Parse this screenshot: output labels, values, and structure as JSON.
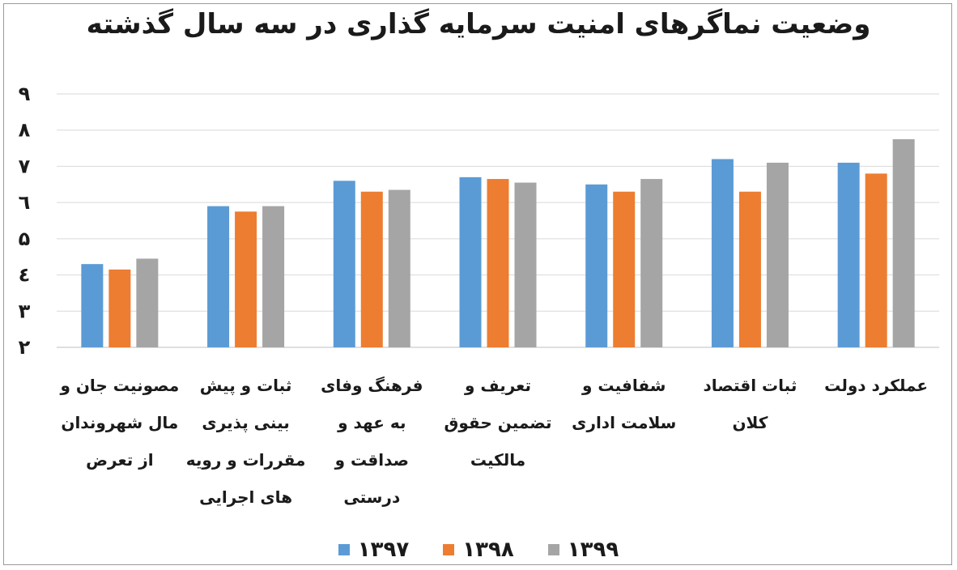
{
  "chart_data": {
    "type": "bar",
    "title": "وضعیت نماگرهای امنیت سرمایه گذاری در سه سال گذشته",
    "ylim": [
      2,
      9
    ],
    "yticks": [
      "۲",
      "۳",
      "٤",
      "۵",
      "٦",
      "۷",
      "۸",
      "۹"
    ],
    "grid": true,
    "legend_position": "bottom",
    "categories": [
      "عملکرد دولت",
      "ثبات اقتصاد کلان",
      "شفافیت و سلامت اداری",
      "تعریف و تضمین حقوق مالکیت",
      "فرهنگ وفای به عهد و صداقت و درستی",
      "ثبات و پیش بینی پذیری مقررات و رویه های اجرایی",
      "مصونیت جان و مال شهروندان از تعرض"
    ],
    "category_label_lines": [
      [
        "عملکرد دولت"
      ],
      [
        "ثبات اقتصاد",
        "کلان"
      ],
      [
        "شفافیت و",
        "سلامت اداری"
      ],
      [
        "تعریف و",
        "تضمین حقوق",
        "مالکیت"
      ],
      [
        "فرهنگ وفای",
        "به عهد و",
        "صداقت و",
        "درستی"
      ],
      [
        "ثبات و پیش",
        "بینی پذیری",
        "مقررات و رویه",
        "های اجرایی"
      ],
      [
        "مصونیت جان و",
        "مال شهروندان",
        "از تعرض"
      ]
    ],
    "series": [
      {
        "name": "۱۳۹۷",
        "color": "#5b9bd5",
        "values": [
          7.1,
          7.2,
          6.5,
          6.7,
          6.6,
          5.9,
          4.3
        ]
      },
      {
        "name": "۱۳۹۸",
        "color": "#ed7d31",
        "values": [
          6.8,
          6.3,
          6.3,
          6.65,
          6.3,
          5.75,
          4.15
        ]
      },
      {
        "name": "۱۳۹۹",
        "color": "#a5a5a5",
        "values": [
          7.75,
          7.1,
          6.65,
          6.55,
          6.35,
          5.9,
          4.45
        ]
      }
    ]
  }
}
